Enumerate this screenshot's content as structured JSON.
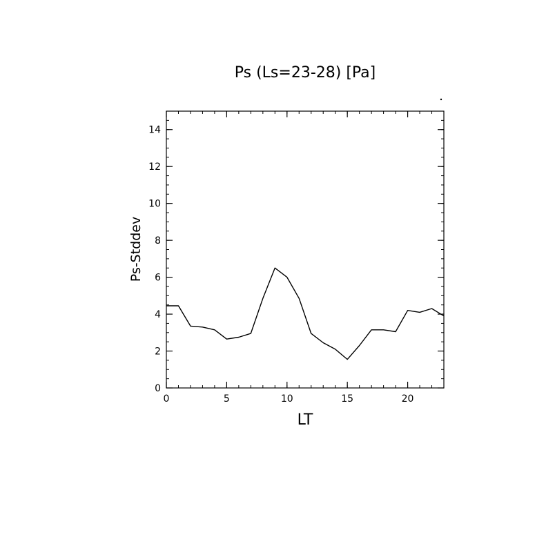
{
  "chart_data": {
    "type": "line",
    "title": "Ps (Ls=23-28) [Pa]",
    "xlabel": "LT",
    "ylabel": "Ps-Stddev",
    "xlim": [
      0,
      23
    ],
    "ylim": [
      0,
      15
    ],
    "x_ticks": [
      0,
      5,
      10,
      15,
      20
    ],
    "y_ticks": [
      0,
      2,
      4,
      6,
      8,
      10,
      12,
      14
    ],
    "grid": false,
    "x": [
      0,
      1,
      2,
      3,
      4,
      5,
      6,
      7,
      8,
      9,
      10,
      11,
      12,
      13,
      14,
      15,
      16,
      17,
      18,
      19,
      20,
      21,
      22,
      23
    ],
    "series": [
      {
        "values": [
          4.45,
          4.45,
          3.35,
          3.3,
          3.15,
          2.65,
          2.75,
          2.95,
          4.85,
          6.5,
          6.0,
          4.85,
          2.95,
          2.45,
          2.1,
          1.55,
          2.3,
          3.15,
          3.15,
          3.05,
          4.2,
          4.1,
          4.3,
          3.9
        ]
      }
    ],
    "line_color": "#000000"
  }
}
